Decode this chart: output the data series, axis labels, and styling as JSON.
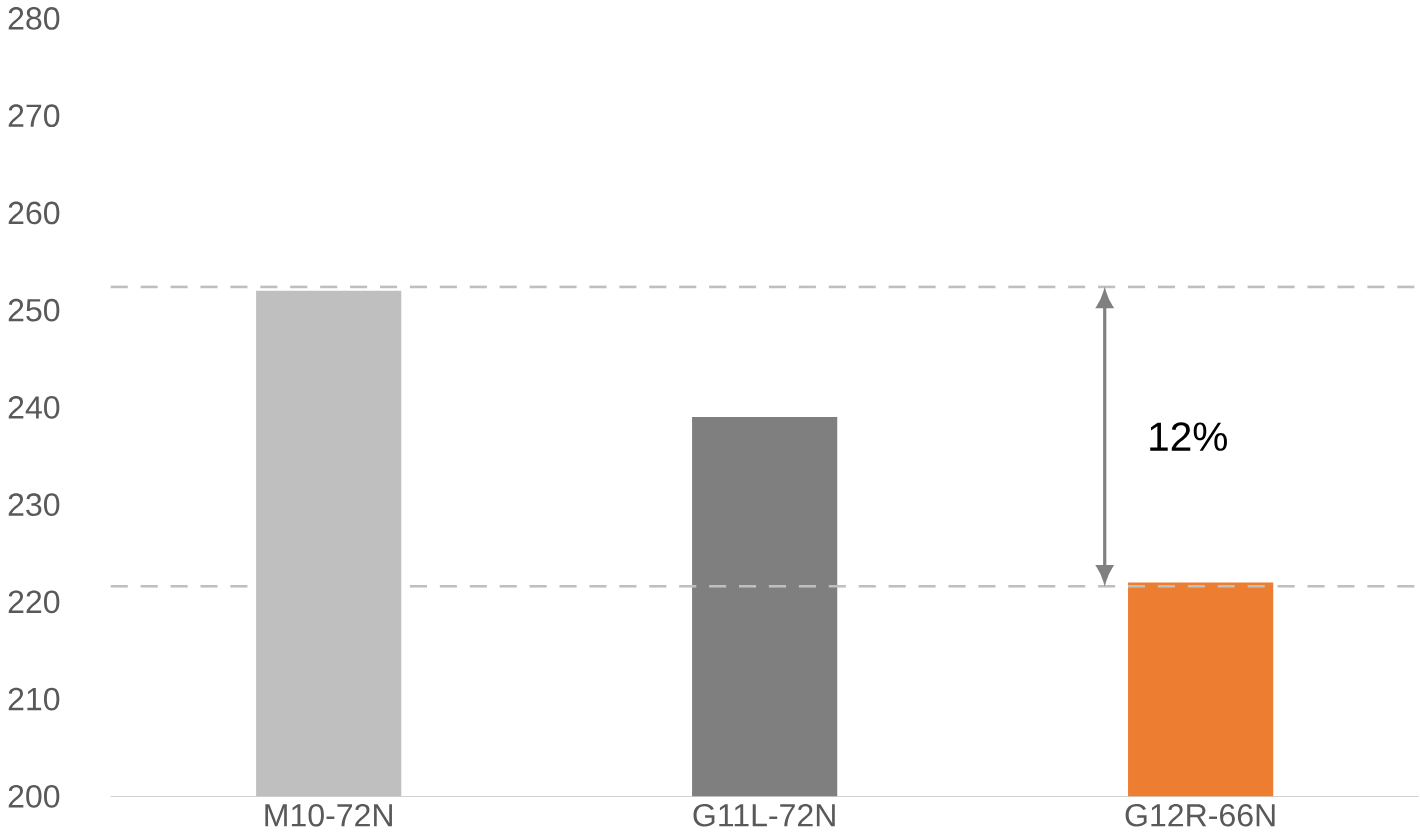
{
  "chart_data": {
    "type": "bar",
    "categories": [
      "M10-72N",
      "G11L-72N",
      "G12R-66N"
    ],
    "values": [
      252,
      239,
      222
    ],
    "colors": [
      "#bfbfbf",
      "#7f7f7f",
      "#ed7d31"
    ],
    "ylim": [
      200,
      280
    ],
    "yticks": [
      200,
      210,
      220,
      230,
      240,
      250,
      260,
      270,
      280
    ],
    "grid": false,
    "ref_lines": [
      {
        "axis": "y",
        "value": 252.4,
        "color": "#bfbfbf",
        "line_style": "dashed"
      },
      {
        "axis": "y",
        "value": 221.6,
        "color": "#bfbfbf",
        "line_style": "dashed"
      }
    ],
    "annotations": [
      "12%"
    ]
  }
}
